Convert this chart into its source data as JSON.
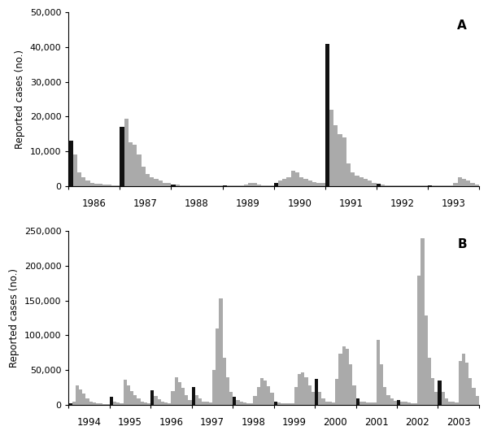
{
  "panel_A": {
    "title": "A",
    "ylabel": "Reported cases (no.)",
    "ylim": [
      0,
      50000
    ],
    "yticks": [
      0,
      10000,
      20000,
      30000,
      40000,
      50000
    ],
    "ytick_labels": [
      "0",
      "10,000",
      "20,000",
      "30,000",
      "40,000",
      "50,000"
    ],
    "start_year": 1986,
    "n_years": 8,
    "values": [
      13000,
      9000,
      4000,
      2500,
      1500,
      1000,
      700,
      600,
      500,
      400,
      300,
      200,
      17000,
      19500,
      12500,
      12000,
      9000,
      5500,
      3500,
      2500,
      2000,
      1500,
      1000,
      800,
      500,
      400,
      300,
      200,
      200,
      100,
      100,
      100,
      100,
      100,
      100,
      100,
      100,
      100,
      100,
      100,
      200,
      400,
      800,
      1000,
      500,
      300,
      200,
      100,
      1000,
      1500,
      2000,
      2500,
      4500,
      4000,
      2500,
      2000,
      1500,
      1200,
      1000,
      800,
      41000,
      22000,
      17500,
      15000,
      14000,
      6500,
      4000,
      3000,
      2500,
      2000,
      1500,
      800,
      700,
      500,
      300,
      200,
      200,
      100,
      100,
      100,
      100,
      100,
      100,
      100,
      200,
      300,
      300,
      200,
      200,
      100,
      900,
      2500,
      2000,
      1500,
      900,
      400
    ],
    "january_indices": [
      0,
      12,
      24,
      36,
      48,
      60,
      72,
      84
    ]
  },
  "panel_B": {
    "title": "B",
    "ylabel": "Reported cases (no.)",
    "ylim": [
      0,
      250000
    ],
    "yticks": [
      0,
      50000,
      100000,
      150000,
      200000,
      250000
    ],
    "ytick_labels": [
      "0",
      "50,000",
      "100,000",
      "150,000",
      "200,000",
      "250,000"
    ],
    "start_year": 1994,
    "n_years": 10,
    "values": [
      2000,
      4000,
      28000,
      22000,
      16000,
      9000,
      5000,
      3000,
      2000,
      1500,
      1000,
      800,
      12000,
      5000,
      3000,
      2500,
      36000,
      28000,
      20000,
      14000,
      9000,
      5000,
      3000,
      2000,
      21000,
      13000,
      8000,
      5000,
      3000,
      2000,
      20000,
      39000,
      33000,
      24000,
      14000,
      7000,
      25000,
      14000,
      9000,
      5000,
      4000,
      3000,
      50000,
      110000,
      153000,
      68000,
      40000,
      18000,
      11000,
      7000,
      5000,
      3000,
      2500,
      2000,
      13000,
      25000,
      38000,
      35000,
      27000,
      17000,
      5000,
      3000,
      2500,
      2000,
      1500,
      1500,
      25000,
      44000,
      46000,
      39000,
      28000,
      18000,
      37000,
      19000,
      9000,
      5000,
      4000,
      3000,
      37000,
      74000,
      84000,
      80000,
      58000,
      28000,
      9000,
      5000,
      4000,
      3000,
      3000,
      3000,
      93000,
      58000,
      25000,
      14000,
      9000,
      6000,
      7000,
      5000,
      4000,
      3000,
      2500,
      2500,
      186000,
      240000,
      128000,
      68000,
      38000,
      18000,
      35000,
      18000,
      9000,
      5000,
      4000,
      3000,
      63000,
      73000,
      60000,
      38000,
      24000,
      13000
    ],
    "january_indices": [
      0,
      12,
      24,
      36,
      48,
      60,
      72,
      84,
      96,
      108
    ]
  },
  "bar_color_normal": "#aaaaaa",
  "bar_color_january": "#111111",
  "figure_bg": "white"
}
